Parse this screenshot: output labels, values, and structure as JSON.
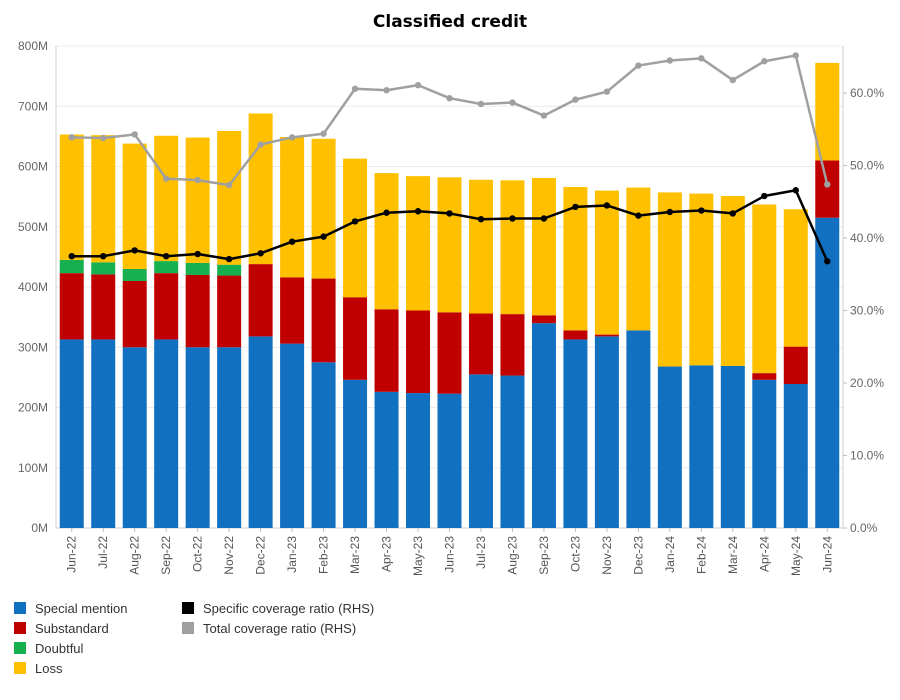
{
  "chart_data": {
    "type": "bar",
    "title": "Classified credit",
    "categories": [
      "Jun-22",
      "Jul-22",
      "Aug-22",
      "Sep-22",
      "Oct-22",
      "Nov-22",
      "Dec-22",
      "Jan-23",
      "Feb-23",
      "Mar-23",
      "Apr-23",
      "May-23",
      "Jun-23",
      "Jul-23",
      "Aug-23",
      "Sep-23",
      "Oct-23",
      "Nov-23",
      "Dec-23",
      "Jan-24",
      "Feb-24",
      "Mar-24",
      "Apr-24",
      "May-24",
      "Jun-24"
    ],
    "stacked": true,
    "series": [
      {
        "name": "Special mention",
        "color": "#1170c0",
        "values": [
          313,
          313,
          300,
          313,
          300,
          300,
          318,
          306,
          275,
          246,
          226,
          224,
          223,
          255,
          253,
          340,
          313,
          318,
          328,
          268,
          270,
          269,
          246,
          239,
          515
        ]
      },
      {
        "name": "Substandard",
        "color": "#c00000",
        "values": [
          110,
          108,
          110,
          110,
          120,
          119,
          120,
          110,
          139,
          137,
          137,
          137,
          135,
          101,
          102,
          13,
          15,
          3,
          0,
          0,
          0,
          0,
          11,
          62,
          95
        ]
      },
      {
        "name": "Doubtful",
        "color": "#16b050",
        "values": [
          22,
          20,
          20,
          20,
          20,
          18,
          0,
          0,
          0,
          0,
          0,
          0,
          0,
          0,
          0,
          0,
          0,
          0,
          0,
          0,
          0,
          0,
          0,
          0,
          0
        ]
      },
      {
        "name": "Loss",
        "color": "#ffc000",
        "values": [
          208,
          211,
          208,
          208,
          208,
          222,
          250,
          233,
          232,
          230,
          226,
          223,
          224,
          222,
          222,
          228,
          238,
          239,
          237,
          289,
          285,
          282,
          280,
          228,
          162
        ]
      }
    ],
    "line_series": [
      {
        "name": "Specific coverage ratio (RHS)",
        "color": "#000000",
        "values": [
          37.5,
          37.5,
          38.3,
          37.5,
          37.8,
          37.1,
          37.9,
          39.5,
          40.2,
          42.3,
          43.5,
          43.7,
          43.4,
          42.6,
          42.7,
          42.7,
          44.3,
          44.5,
          43.1,
          43.6,
          43.8,
          43.4,
          45.8,
          46.6,
          36.8
        ]
      },
      {
        "name": "Total coverage ratio (RHS)",
        "color": "#a0a0a0",
        "values": [
          53.9,
          53.8,
          54.3,
          48.2,
          48.0,
          47.3,
          52.9,
          53.9,
          54.4,
          60.6,
          60.4,
          61.1,
          59.3,
          58.5,
          58.7,
          56.9,
          59.1,
          60.2,
          63.8,
          64.5,
          64.8,
          61.8,
          64.4,
          65.2,
          47.4
        ]
      }
    ],
    "ylim": [
      0,
      800
    ],
    "y_ticks": [
      "0M",
      "100M",
      "200M",
      "300M",
      "400M",
      "500M",
      "600M",
      "700M",
      "800M"
    ],
    "y2lim": [
      0,
      66.5
    ],
    "y2_ticks": [
      "0.0%",
      "10.0%",
      "20.0%",
      "30.0%",
      "40.0%",
      "50.0%",
      "60.0%"
    ],
    "legend_position": "bottom-left",
    "grid": true
  }
}
